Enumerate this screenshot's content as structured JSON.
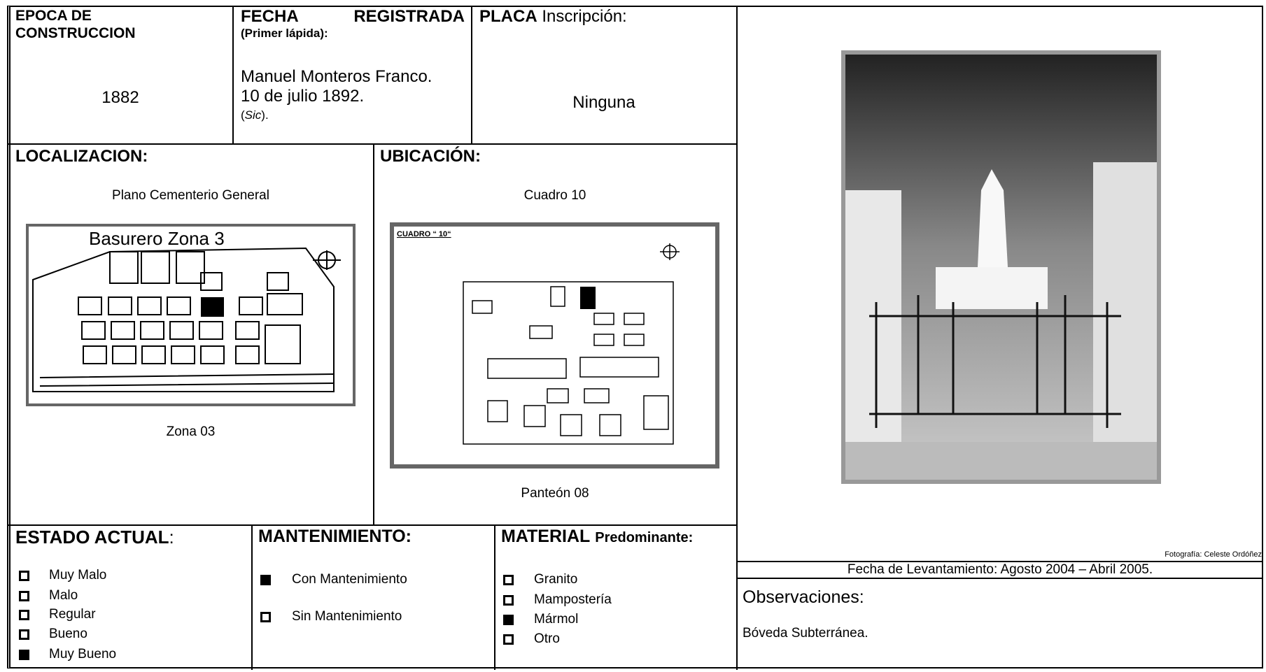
{
  "epoca": {
    "label": "EPOCA DE CONSTRUCCION",
    "value": "1882"
  },
  "fecha": {
    "label": "FECHA REGISTRADA",
    "sublabel": "(Primer lápida):",
    "lines": [
      "Manuel Monteros Franco.",
      "10 de julio 1892."
    ],
    "note_open": "(",
    "note_italic": "Sic",
    "note_close": ")."
  },
  "placa": {
    "label": "PLACA",
    "sublabel": "Inscripción:",
    "value": "Ninguna"
  },
  "localizacion": {
    "label": "LOCALIZACION:",
    "caption": "Plano Cementerio General",
    "footer": "Zona 03",
    "map_title": "Basurero Zona 3"
  },
  "ubicacion": {
    "label": "UBICACIÓN:",
    "caption": "Cuadro 10",
    "footer": "Panteón 08",
    "map_title": "CUADRO “ 10“"
  },
  "estado": {
    "label": "ESTADO ACTUAL",
    "suffix": ":",
    "items": [
      {
        "text": "Muy Malo",
        "checked": false
      },
      {
        "text": "Malo",
        "checked": false
      },
      {
        "text": "Regular",
        "checked": false
      },
      {
        "text": "Bueno",
        "checked": false
      },
      {
        "text": "Muy Bueno",
        "checked": true
      }
    ]
  },
  "mantenimiento": {
    "label": "MANTENIMIENTO:",
    "items": [
      {
        "text": "Con Mantenimiento",
        "checked": true
      },
      {
        "text": "Sin Mantenimiento",
        "checked": false
      }
    ]
  },
  "material": {
    "label": "MATERIAL",
    "sublabel": "Predominante:",
    "items": [
      {
        "text": "Granito",
        "checked": false
      },
      {
        "text": "Mampostería",
        "checked": false
      },
      {
        "text": "Mármol",
        "checked": true
      },
      {
        "text": "Otro",
        "checked": false
      }
    ]
  },
  "photo_credit": "Fotografía:  Celeste Ordóñez",
  "fecha_levantamiento": "Fecha de Levantamiento: Agosto 2004 – Abril 2005.",
  "observaciones": {
    "label": "Observaciones:",
    "text": "Bóveda Subterránea."
  }
}
